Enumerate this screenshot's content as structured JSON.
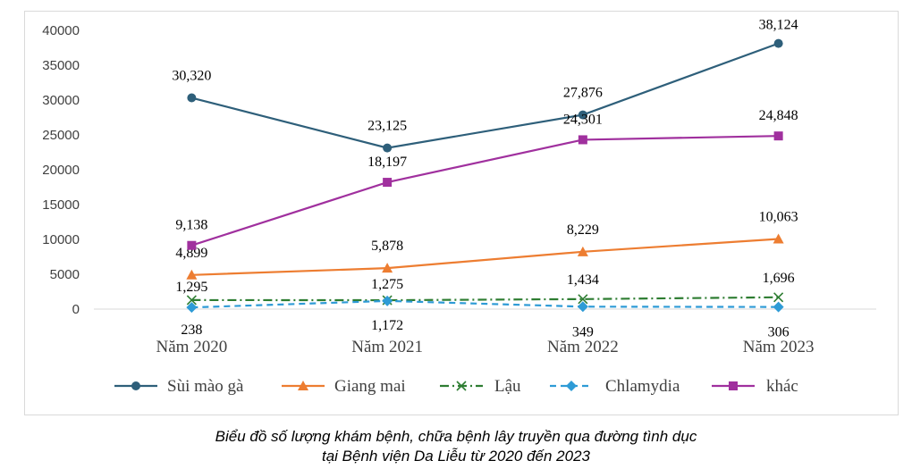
{
  "chart_data": {
    "type": "line",
    "categories": [
      "Năm 2020",
      "Năm 2021",
      "Năm 2022",
      "Năm 2023"
    ],
    "ylim": [
      0,
      40000
    ],
    "yticks": [
      "0",
      "5000",
      "10000",
      "15000",
      "20000",
      "25000",
      "30000",
      "35000",
      "40000"
    ],
    "grid": false,
    "legend_position": "bottom",
    "series": [
      {
        "name": "Sùi mào gà",
        "values": [
          30320,
          23125,
          27876,
          38124
        ],
        "labels": [
          "30,320",
          "23,125",
          "27,876",
          "38,124"
        ],
        "color": "#2e5f7a",
        "marker": "circle",
        "dash": "solid"
      },
      {
        "name": "Giang mai",
        "values": [
          4899,
          5878,
          8229,
          10063
        ],
        "labels": [
          "4,899",
          "5,878",
          "8,229",
          "10,063"
        ],
        "color": "#ed7d31",
        "marker": "triangle",
        "dash": "solid"
      },
      {
        "name": "Lậu",
        "values": [
          1295,
          1275,
          1434,
          1696
        ],
        "labels": [
          "1,295",
          "1,275",
          "1,434",
          "1,696"
        ],
        "color": "#2e7d32",
        "marker": "x",
        "dash": "dashdot"
      },
      {
        "name": "Chlamydia",
        "values": [
          238,
          1172,
          349,
          306
        ],
        "labels": [
          "238",
          "1,172",
          "349",
          "306"
        ],
        "color": "#2e9bd6",
        "marker": "diamond",
        "dash": "dash"
      },
      {
        "name": "khác",
        "values": [
          9138,
          18197,
          24301,
          24848
        ],
        "labels": [
          "9,138",
          "18,197",
          "24,301",
          "24,848"
        ],
        "color": "#a0309e",
        "marker": "square",
        "dash": "solid"
      }
    ]
  },
  "caption": {
    "line1": "Biểu đồ số lượng khám bệnh, chữa bệnh lây truyền qua đường tình dục",
    "line2": "tại Bệnh viện Da Liễu từ 2020 đến 2023"
  }
}
